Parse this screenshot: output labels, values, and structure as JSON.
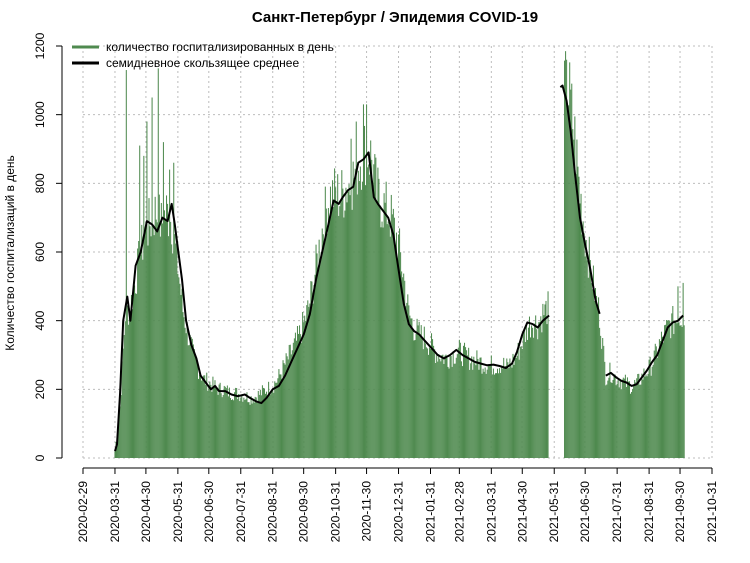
{
  "chart_data": {
    "type": "bar",
    "title": "Санкт-Петербург / Эпидемия COVID-19",
    "xlabel": "",
    "ylabel": "Количество госпитализаций в день",
    "ylim": [
      0,
      1200
    ],
    "yticks": [
      0,
      200,
      400,
      600,
      800,
      1000,
      1200
    ],
    "xrange": [
      "2020-02-29",
      "2021-10-31"
    ],
    "xticks": [
      "2020-02-29",
      "2020-03-31",
      "2020-04-30",
      "2020-05-31",
      "2020-06-30",
      "2020-07-31",
      "2020-08-31",
      "2020-09-30",
      "2020-10-31",
      "2020-11-30",
      "2020-12-31",
      "2021-01-31",
      "2021-02-28",
      "2021-03-31",
      "2021-04-30",
      "2021-05-31",
      "2021-06-30",
      "2021-07-31",
      "2021-08-31",
      "2021-09-30",
      "2021-10-31"
    ],
    "grid": true,
    "legend_position": "top-left",
    "colors": {
      "bars": "#4f8a4f",
      "line": "#000000",
      "grid": "#bdbdbd"
    },
    "series": [
      {
        "name": "количество госпитализированных в день",
        "kind": "bar",
        "points": [
          [
            "2020-03-31",
            20
          ],
          [
            "2020-04-05",
            150
          ],
          [
            "2020-04-10",
            420
          ],
          [
            "2020-04-15",
            440
          ],
          [
            "2020-04-20",
            520
          ],
          [
            "2020-04-25",
            600
          ],
          [
            "2020-04-30",
            660
          ],
          [
            "2020-05-05",
            690
          ],
          [
            "2020-05-10",
            720
          ],
          [
            "2020-05-15",
            680
          ],
          [
            "2020-05-20",
            720
          ],
          [
            "2020-05-25",
            690
          ],
          [
            "2020-05-31",
            560
          ],
          [
            "2020-06-05",
            430
          ],
          [
            "2020-06-10",
            360
          ],
          [
            "2020-06-15",
            300
          ],
          [
            "2020-06-20",
            260
          ],
          [
            "2020-06-25",
            230
          ],
          [
            "2020-06-30",
            220
          ],
          [
            "2020-07-05",
            210
          ],
          [
            "2020-07-10",
            200
          ],
          [
            "2020-07-15",
            200
          ],
          [
            "2020-07-20",
            190
          ],
          [
            "2020-07-25",
            190
          ],
          [
            "2020-07-31",
            185
          ],
          [
            "2020-08-05",
            180
          ],
          [
            "2020-08-10",
            175
          ],
          [
            "2020-08-15",
            180
          ],
          [
            "2020-08-20",
            190
          ],
          [
            "2020-08-25",
            200
          ],
          [
            "2020-08-31",
            210
          ],
          [
            "2020-09-05",
            230
          ],
          [
            "2020-09-10",
            260
          ],
          [
            "2020-09-15",
            290
          ],
          [
            "2020-09-20",
            320
          ],
          [
            "2020-09-25",
            350
          ],
          [
            "2020-09-30",
            390
          ],
          [
            "2020-10-05",
            440
          ],
          [
            "2020-10-10",
            520
          ],
          [
            "2020-10-15",
            610
          ],
          [
            "2020-10-20",
            700
          ],
          [
            "2020-10-25",
            760
          ],
          [
            "2020-10-31",
            770
          ],
          [
            "2020-11-05",
            760
          ],
          [
            "2020-11-10",
            790
          ],
          [
            "2020-11-15",
            800
          ],
          [
            "2020-11-20",
            840
          ],
          [
            "2020-11-25",
            880
          ],
          [
            "2020-11-30",
            900
          ],
          [
            "2020-12-05",
            870
          ],
          [
            "2020-12-10",
            770
          ],
          [
            "2020-12-15",
            740
          ],
          [
            "2020-12-20",
            720
          ],
          [
            "2020-12-25",
            690
          ],
          [
            "2020-12-31",
            620
          ],
          [
            "2021-01-05",
            530
          ],
          [
            "2021-01-10",
            420
          ],
          [
            "2021-01-15",
            380
          ],
          [
            "2021-01-20",
            360
          ],
          [
            "2021-01-25",
            350
          ],
          [
            "2021-01-31",
            330
          ],
          [
            "2021-02-05",
            310
          ],
          [
            "2021-02-10",
            300
          ],
          [
            "2021-02-15",
            290
          ],
          [
            "2021-02-20",
            300
          ],
          [
            "2021-02-28",
            310
          ],
          [
            "2021-03-05",
            300
          ],
          [
            "2021-03-10",
            290
          ],
          [
            "2021-03-15",
            285
          ],
          [
            "2021-03-20",
            280
          ],
          [
            "2021-03-25",
            275
          ],
          [
            "2021-03-31",
            270
          ],
          [
            "2021-04-05",
            270
          ],
          [
            "2021-04-10",
            275
          ],
          [
            "2021-04-15",
            265
          ],
          [
            "2021-04-20",
            280
          ],
          [
            "2021-04-25",
            300
          ],
          [
            "2021-04-30",
            340
          ],
          [
            "2021-05-05",
            380
          ],
          [
            "2021-05-10",
            400
          ],
          [
            "2021-05-15",
            390
          ],
          [
            "2021-05-20",
            420
          ],
          [
            "2021-05-26",
            440
          ],
          [
            "2021-06-10",
            1080
          ],
          [
            "2021-06-15",
            1050
          ],
          [
            "2021-06-20",
            930
          ],
          [
            "2021-06-25",
            770
          ],
          [
            "2021-06-30",
            650
          ],
          [
            "2021-07-05",
            560
          ],
          [
            "2021-07-10",
            470
          ],
          [
            "2021-07-14",
            420
          ],
          [
            "2021-07-20",
            240
          ],
          [
            "2021-07-25",
            250
          ],
          [
            "2021-07-31",
            230
          ],
          [
            "2021-08-05",
            225
          ],
          [
            "2021-08-10",
            215
          ],
          [
            "2021-08-15",
            210
          ],
          [
            "2021-08-20",
            220
          ],
          [
            "2021-08-25",
            240
          ],
          [
            "2021-08-31",
            260
          ],
          [
            "2021-09-05",
            290
          ],
          [
            "2021-09-10",
            330
          ],
          [
            "2021-09-15",
            360
          ],
          [
            "2021-09-20",
            390
          ],
          [
            "2021-09-25",
            400
          ],
          [
            "2021-09-30",
            410
          ],
          [
            "2021-10-04",
            420
          ]
        ],
        "spikes": [
          [
            "2020-04-11",
            1130
          ],
          [
            "2020-04-24",
            910
          ],
          [
            "2020-04-28",
            880
          ],
          [
            "2020-05-01",
            980
          ],
          [
            "2020-05-06",
            1050
          ],
          [
            "2020-05-12",
            1135
          ],
          [
            "2020-05-17",
            920
          ],
          [
            "2020-05-23",
            840
          ],
          [
            "2020-05-27",
            860
          ],
          [
            "2020-11-15",
            930
          ],
          [
            "2020-11-20",
            980
          ],
          [
            "2020-11-27",
            1030
          ],
          [
            "2020-11-30",
            1030
          ],
          [
            "2021-06-09",
            1210
          ],
          [
            "2021-06-12",
            1160
          ],
          [
            "2021-09-28",
            500
          ],
          [
            "2021-10-03",
            510
          ]
        ]
      },
      {
        "name": "семидневное скользящее среднее",
        "kind": "line",
        "points": [
          [
            "2020-03-31",
            20
          ],
          [
            "2020-04-02",
            40
          ],
          [
            "2020-04-05",
            190
          ],
          [
            "2020-04-08",
            400
          ],
          [
            "2020-04-12",
            470
          ],
          [
            "2020-04-15",
            400
          ],
          [
            "2020-04-20",
            560
          ],
          [
            "2020-04-25",
            600
          ],
          [
            "2020-05-01",
            690
          ],
          [
            "2020-05-06",
            680
          ],
          [
            "2020-05-11",
            660
          ],
          [
            "2020-05-16",
            700
          ],
          [
            "2020-05-21",
            690
          ],
          [
            "2020-05-25",
            740
          ],
          [
            "2020-05-28",
            680
          ],
          [
            "2020-05-31",
            610
          ],
          [
            "2020-06-04",
            520
          ],
          [
            "2020-06-08",
            400
          ],
          [
            "2020-06-13",
            330
          ],
          [
            "2020-06-18",
            290
          ],
          [
            "2020-06-22",
            240
          ],
          [
            "2020-06-27",
            220
          ],
          [
            "2020-07-02",
            200
          ],
          [
            "2020-07-06",
            210
          ],
          [
            "2020-07-10",
            195
          ],
          [
            "2020-07-16",
            195
          ],
          [
            "2020-07-22",
            185
          ],
          [
            "2020-07-28",
            180
          ],
          [
            "2020-08-04",
            185
          ],
          [
            "2020-08-09",
            175
          ],
          [
            "2020-08-15",
            165
          ],
          [
            "2020-08-20",
            160
          ],
          [
            "2020-08-25",
            175
          ],
          [
            "2020-08-31",
            200
          ],
          [
            "2020-09-06",
            210
          ],
          [
            "2020-09-12",
            240
          ],
          [
            "2020-09-18",
            280
          ],
          [
            "2020-09-24",
            320
          ],
          [
            "2020-09-30",
            360
          ],
          [
            "2020-10-06",
            420
          ],
          [
            "2020-10-12",
            520
          ],
          [
            "2020-10-18",
            600
          ],
          [
            "2020-10-24",
            680
          ],
          [
            "2020-10-29",
            750
          ],
          [
            "2020-11-03",
            740
          ],
          [
            "2020-11-07",
            760
          ],
          [
            "2020-11-12",
            780
          ],
          [
            "2020-11-17",
            790
          ],
          [
            "2020-11-22",
            860
          ],
          [
            "2020-11-27",
            870
          ],
          [
            "2020-12-02",
            890
          ],
          [
            "2020-12-07",
            760
          ],
          [
            "2020-12-11",
            740
          ],
          [
            "2020-12-16",
            720
          ],
          [
            "2020-12-21",
            700
          ],
          [
            "2020-12-26",
            650
          ],
          [
            "2020-12-31",
            550
          ],
          [
            "2021-01-05",
            450
          ],
          [
            "2021-01-10",
            390
          ],
          [
            "2021-01-15",
            370
          ],
          [
            "2021-01-20",
            360
          ],
          [
            "2021-01-26",
            340
          ],
          [
            "2021-02-01",
            320
          ],
          [
            "2021-02-07",
            300
          ],
          [
            "2021-02-13",
            290
          ],
          [
            "2021-02-19",
            300
          ],
          [
            "2021-02-25",
            315
          ],
          [
            "2021-03-03",
            300
          ],
          [
            "2021-03-09",
            290
          ],
          [
            "2021-03-15",
            280
          ],
          [
            "2021-03-21",
            275
          ],
          [
            "2021-03-27",
            270
          ],
          [
            "2021-04-02",
            272
          ],
          [
            "2021-04-08",
            268
          ],
          [
            "2021-04-14",
            262
          ],
          [
            "2021-04-20",
            275
          ],
          [
            "2021-04-25",
            310
          ],
          [
            "2021-04-30",
            360
          ],
          [
            "2021-05-05",
            395
          ],
          [
            "2021-05-10",
            390
          ],
          [
            "2021-05-15",
            380
          ],
          [
            "2021-05-20",
            400
          ],
          [
            "2021-05-26",
            415
          ]
        ],
        "segments": [
          [
            [
              "2021-06-06",
              1080
            ],
            [
              "2021-06-08",
              1085
            ],
            [
              "2021-06-12",
              1040
            ],
            [
              "2021-06-16",
              950
            ],
            [
              "2021-06-20",
              830
            ],
            [
              "2021-06-25",
              700
            ],
            [
              "2021-06-30",
              620
            ],
            [
              "2021-07-05",
              550
            ],
            [
              "2021-07-10",
              460
            ],
            [
              "2021-07-14",
              420
            ]
          ],
          [
            [
              "2021-07-20",
              240
            ],
            [
              "2021-07-25",
              248
            ],
            [
              "2021-07-30",
              235
            ],
            [
              "2021-08-04",
              225
            ],
            [
              "2021-08-09",
              220
            ],
            [
              "2021-08-14",
              210
            ],
            [
              "2021-08-19",
              215
            ],
            [
              "2021-08-24",
              235
            ],
            [
              "2021-08-29",
              255
            ],
            [
              "2021-09-03",
              280
            ],
            [
              "2021-09-08",
              300
            ],
            [
              "2021-09-13",
              340
            ],
            [
              "2021-09-18",
              380
            ],
            [
              "2021-09-23",
              395
            ],
            [
              "2021-09-28",
              400
            ],
            [
              "2021-10-03",
              415
            ]
          ]
        ]
      }
    ]
  }
}
